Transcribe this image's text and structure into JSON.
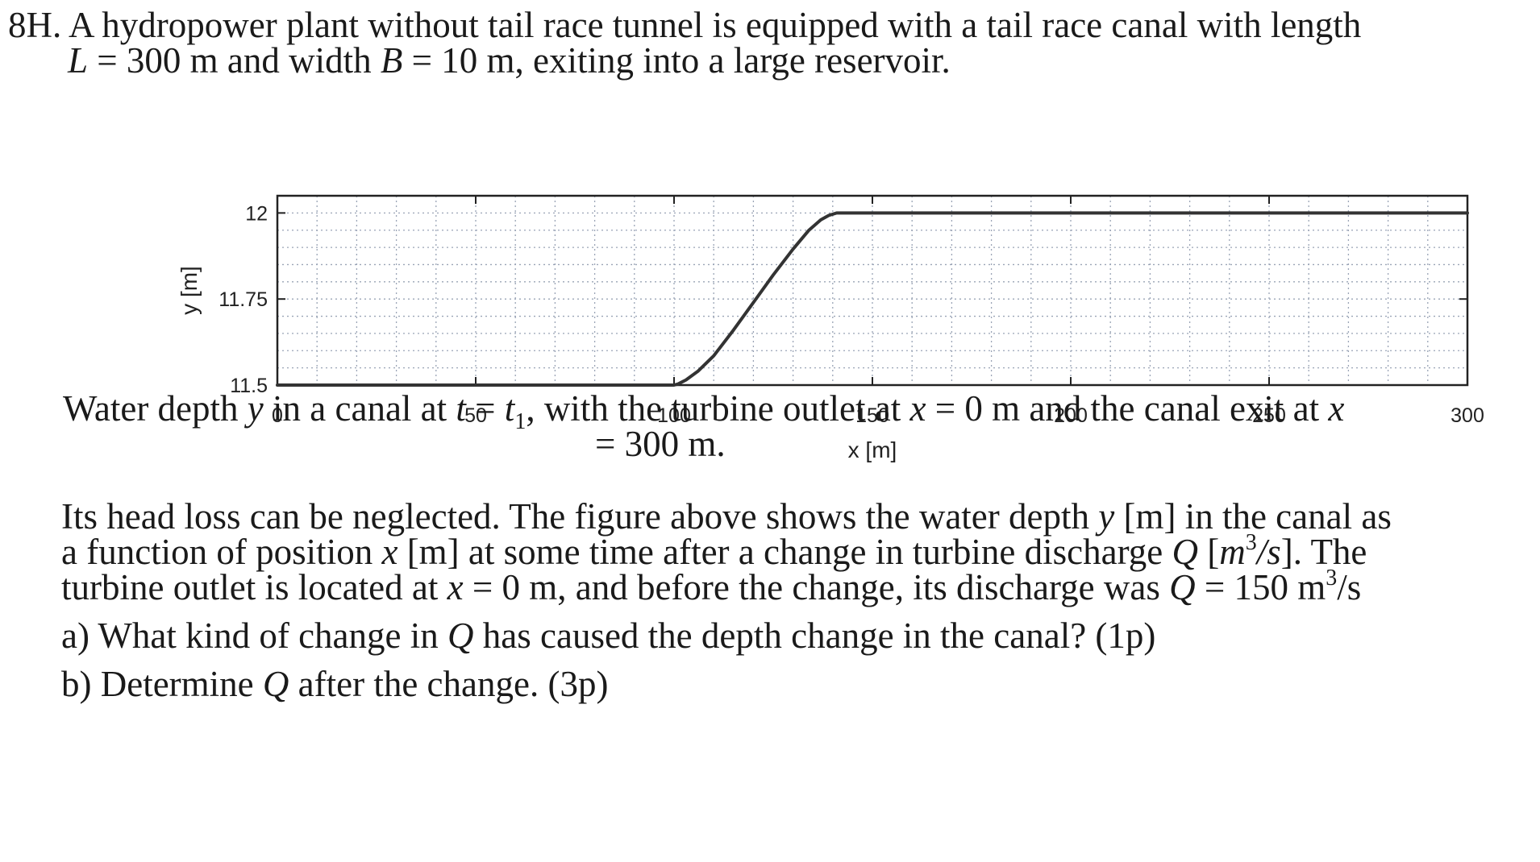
{
  "problem": {
    "number": "8H.",
    "intro_1": "A hydropower plant without tail race tunnel is equipped with a tail race canal with length",
    "L_symbol": "L",
    "L_value": "= 300 m and width",
    "B_symbol": "B",
    "B_value": "= 10 m, exiting into a large reservoir."
  },
  "caption": {
    "part1": "Water depth",
    "y": "y",
    "part2": "in a canal at",
    "t": "t",
    "eq": "=",
    "t1": "t",
    "t1_sub": "1",
    "part3": ", with the turbine outlet at",
    "x1": "x",
    "part4": "= 0 m and the canal exit at",
    "x2": "x",
    "line2": "= 300 m."
  },
  "body": {
    "l1a": "Its head loss can be neglected. The figure above shows the water depth",
    "l1_y": "y",
    "l1b": "[m] in the canal as",
    "l2a": "a function of position",
    "l2_x": "x",
    "l2b": "[m] at some time after a change in turbine discharge",
    "l2_Q": "Q",
    "l2c": "[",
    "l2_m": "m",
    "l2_exp": "3",
    "l2_s": "/s",
    "l2d": "].  The",
    "l3a": "turbine outlet is located at",
    "l3_x": "x",
    "l3b": "= 0 m, and before the change, its discharge was",
    "l3_Q": "Q",
    "l3c": "=  150 m",
    "l3_exp": "3",
    "l3d": "/s"
  },
  "questions": {
    "a_pre": "a) What kind of change in",
    "a_Q": "Q",
    "a_post": "has caused the depth change in the canal? (1p)",
    "b_pre": "b) Determine",
    "b_Q": "Q",
    "b_post": "after the change. (3p)"
  },
  "chart_data": {
    "type": "line",
    "xlabel": "x [m]",
    "ylabel": "y [m]",
    "xlim": [
      0,
      300
    ],
    "ylim": [
      11.5,
      12.05
    ],
    "xticks": [
      "0",
      "50",
      "100",
      "150",
      "200",
      "250",
      "300"
    ],
    "yticks": [
      "11.5",
      "11.75",
      "12"
    ],
    "grid": true,
    "series": [
      {
        "x": [
          0,
          100,
          101,
          103,
          106,
          110,
          115,
          120,
          125,
          130,
          134,
          137,
          139,
          141,
          300
        ],
        "y": [
          11.5,
          11.5,
          11.503,
          11.515,
          11.54,
          11.585,
          11.66,
          11.74,
          11.82,
          11.895,
          11.95,
          11.98,
          11.993,
          12.0,
          12.0
        ]
      }
    ],
    "colors": {
      "line": "#333333",
      "grid": "#9aa4b6",
      "frame": "#222222"
    }
  }
}
